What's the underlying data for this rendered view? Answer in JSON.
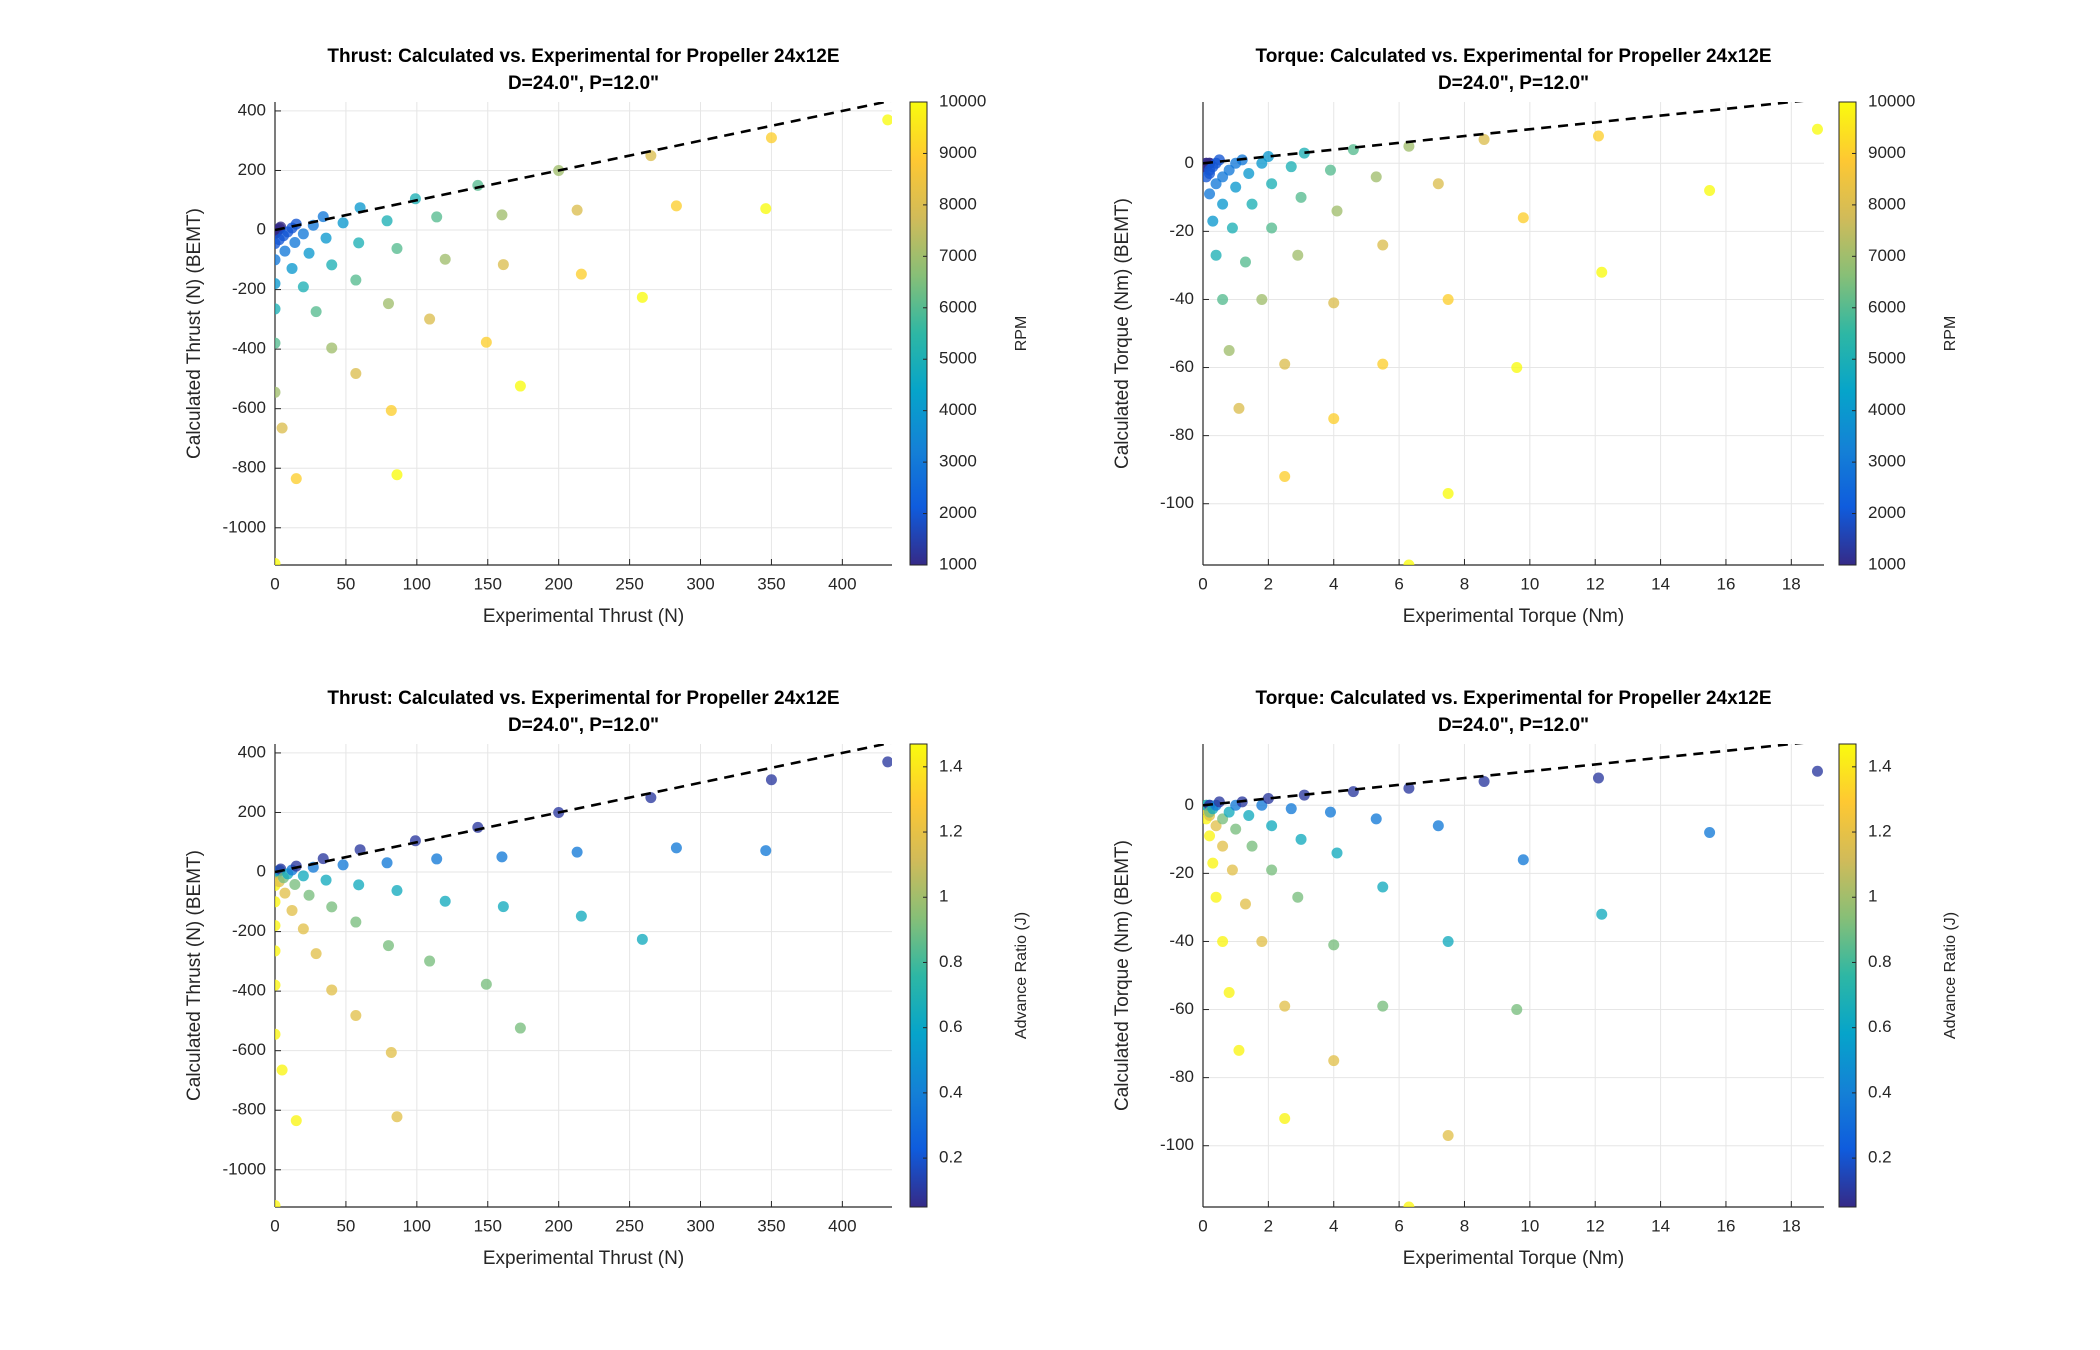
{
  "chart_data": [
    {
      "type": "scatter",
      "title": "Thrust: Calculated vs. Experimental for Propeller 24x12E",
      "subtitle": "D=24.0\", P=12.0\"",
      "xlabel": "Experimental Thrust (N)",
      "ylabel": "Calculated Thrust (N) (BEMT)",
      "colorbar_label": "RPM",
      "xlim": [
        0,
        435
      ],
      "ylim": [
        -1125,
        430
      ],
      "xticks": [
        0,
        50,
        100,
        150,
        200,
        250,
        300,
        350,
        400
      ],
      "yticks": [
        -1000,
        -800,
        -600,
        -400,
        -200,
        0,
        200,
        400
      ],
      "clim": [
        1000,
        10000
      ],
      "cticks": [
        1000,
        2000,
        3000,
        4000,
        5000,
        6000,
        7000,
        8000,
        9000,
        10000
      ],
      "colormap": [
        "#352a87",
        "#0f5cdd",
        "#1481d6",
        "#06a4ca",
        "#2eb7a4",
        "#87bf77",
        "#d1bb59",
        "#fec832",
        "#f9fb0e"
      ],
      "grid": true,
      "identity_line": true,
      "x": [
        0,
        0.8,
        1.6,
        2.4,
        3.2,
        4,
        0,
        3,
        6,
        9,
        12,
        15,
        0,
        7,
        14,
        20,
        27,
        34,
        0,
        12,
        24,
        36,
        48,
        60,
        0,
        20,
        40,
        59,
        79,
        99,
        0,
        29,
        57,
        86,
        114,
        143,
        0,
        40,
        80,
        120,
        160,
        200,
        5,
        57,
        109,
        161,
        213,
        265,
        15,
        82,
        149,
        216,
        283,
        350,
        0,
        86,
        173,
        259,
        346,
        432
      ],
      "y": [
        -12,
        -8,
        -3,
        1,
        6,
        10,
        -45,
        -32,
        -19,
        -6,
        7,
        20,
        -100,
        -71,
        -42,
        -13,
        16,
        45,
        -180,
        -129,
        -78,
        -27,
        24,
        75,
        -265,
        -191,
        -117,
        -43,
        31,
        105,
        -380,
        -274,
        -168,
        -62,
        44,
        150,
        -545,
        -396,
        -247,
        -98,
        51,
        200,
        -665,
        -482,
        -299,
        -116,
        67,
        250,
        -835,
        -606,
        -377,
        -148,
        81,
        310,
        -1120,
        -822,
        -524,
        -226,
        72,
        370
      ],
      "c": [
        1000,
        1000,
        1000,
        1000,
        1000,
        1000,
        2000,
        2000,
        2000,
        2000,
        2000,
        2000,
        3000,
        3000,
        3000,
        3000,
        3000,
        3000,
        4000,
        4000,
        4000,
        4000,
        4000,
        4000,
        5000,
        5000,
        5000,
        5000,
        5000,
        5000,
        6000,
        6000,
        6000,
        6000,
        6000,
        6000,
        7000,
        7000,
        7000,
        7000,
        7000,
        7000,
        8000,
        8000,
        8000,
        8000,
        8000,
        8000,
        9000,
        9000,
        9000,
        9000,
        9000,
        9000,
        10000,
        10000,
        10000,
        10000,
        10000,
        10000
      ]
    },
    {
      "type": "scatter",
      "title": "Torque: Calculated vs. Experimental for Propeller 24x12E",
      "subtitle": "D=24.0\", P=12.0\"",
      "xlabel": "Experimental Torque (Nm)",
      "ylabel": "Calculated Torque (Nm) (BEMT)",
      "colorbar_label": "RPM",
      "xlim": [
        0,
        19
      ],
      "ylim": [
        -118,
        18
      ],
      "xticks": [
        0,
        2,
        4,
        6,
        8,
        10,
        12,
        14,
        16,
        18
      ],
      "yticks": [
        -100,
        -80,
        -60,
        -40,
        -20,
        0
      ],
      "clim": [
        1000,
        10000
      ],
      "cticks": [
        1000,
        2000,
        3000,
        4000,
        5000,
        6000,
        7000,
        8000,
        9000,
        10000
      ],
      "colormap": [
        "#352a87",
        "#0f5cdd",
        "#1481d6",
        "#06a4ca",
        "#2eb7a4",
        "#87bf77",
        "#d1bb59",
        "#fec832",
        "#f9fb0e"
      ],
      "grid": true,
      "identity_line": true,
      "x": [
        0,
        0.1,
        0.1,
        0.1,
        0.2,
        0.2,
        0.1,
        0.2,
        0.2,
        0.3,
        0.4,
        0.5,
        0.2,
        0.4,
        0.6,
        0.8,
        1.0,
        1.2,
        0.3,
        0.6,
        1.0,
        1.4,
        1.8,
        2.0,
        0.4,
        0.9,
        1.5,
        2.1,
        2.7,
        3.1,
        0.6,
        1.3,
        2.1,
        3.0,
        3.9,
        4.6,
        0.8,
        1.8,
        2.9,
        4.1,
        5.3,
        6.3,
        1.1,
        2.5,
        4.0,
        5.5,
        7.2,
        8.6,
        2.5,
        4.0,
        5.5,
        7.5,
        9.8,
        12.1,
        6.3,
        7.5,
        9.6,
        12.2,
        15.5,
        18.8
      ],
      "y": [
        -1,
        -1,
        0,
        0,
        0,
        0,
        -4,
        -3,
        -2,
        -1,
        0,
        1,
        -9,
        -6,
        -4,
        -2,
        0,
        1,
        -17,
        -12,
        -7,
        -3,
        0,
        2,
        -27,
        -19,
        -12,
        -6,
        -1,
        3,
        -40,
        -29,
        -19,
        -10,
        -2,
        4,
        -55,
        -40,
        -27,
        -14,
        -4,
        5,
        -72,
        -59,
        -41,
        -24,
        -6,
        7,
        -92,
        -75,
        -59,
        -40,
        -16,
        8,
        -118,
        -97,
        -60,
        -32,
        -8,
        10
      ],
      "c": [
        1000,
        1000,
        1000,
        1000,
        1000,
        1000,
        2000,
        2000,
        2000,
        2000,
        2000,
        2000,
        3000,
        3000,
        3000,
        3000,
        3000,
        3000,
        4000,
        4000,
        4000,
        4000,
        4000,
        4000,
        5000,
        5000,
        5000,
        5000,
        5000,
        5000,
        6000,
        6000,
        6000,
        6000,
        6000,
        6000,
        7000,
        7000,
        7000,
        7000,
        7000,
        7000,
        8000,
        8000,
        8000,
        8000,
        8000,
        8000,
        9000,
        9000,
        9000,
        9000,
        9000,
        9000,
        10000,
        10000,
        10000,
        10000,
        10000,
        10000
      ]
    },
    {
      "type": "scatter",
      "title": "Thrust: Calculated vs. Experimental for Propeller 24x12E",
      "subtitle": "D=24.0\", P=12.0\"",
      "xlabel": "Experimental Thrust (N)",
      "ylabel": "Calculated Thrust (N) (BEMT)",
      "colorbar_label": "Advance Ratio (J)",
      "xlim": [
        0,
        435
      ],
      "ylim": [
        -1125,
        430
      ],
      "xticks": [
        0,
        50,
        100,
        150,
        200,
        250,
        300,
        350,
        400
      ],
      "yticks": [
        -1000,
        -800,
        -600,
        -400,
        -200,
        0,
        200,
        400
      ],
      "clim": [
        0.05,
        1.47
      ],
      "cticks": [
        0.2,
        0.4,
        0.6,
        0.8,
        1,
        1.2,
        1.4
      ],
      "colormap": [
        "#352a87",
        "#0f5cdd",
        "#1481d6",
        "#06a4ca",
        "#2eb7a4",
        "#87bf77",
        "#d1bb59",
        "#fec832",
        "#f9fb0e"
      ],
      "grid": true,
      "identity_line": true,
      "x": [
        0,
        0.8,
        1.6,
        2.4,
        3.2,
        4,
        0,
        3,
        6,
        9,
        12,
        15,
        0,
        7,
        14,
        20,
        27,
        34,
        0,
        12,
        24,
        36,
        48,
        60,
        0,
        20,
        40,
        59,
        79,
        99,
        0,
        29,
        57,
        86,
        114,
        143,
        0,
        40,
        80,
        120,
        160,
        200,
        5,
        57,
        109,
        161,
        213,
        265,
        15,
        82,
        149,
        216,
        283,
        350,
        0,
        86,
        173,
        259,
        346,
        432
      ],
      "y": [
        -12,
        -8,
        -3,
        1,
        6,
        10,
        -45,
        -32,
        -19,
        -6,
        7,
        20,
        -100,
        -71,
        -42,
        -13,
        16,
        45,
        -180,
        -129,
        -78,
        -27,
        24,
        75,
        -265,
        -191,
        -117,
        -43,
        31,
        105,
        -380,
        -274,
        -168,
        -62,
        44,
        150,
        -545,
        -396,
        -247,
        -98,
        51,
        200,
        -665,
        -482,
        -299,
        -116,
        67,
        250,
        -835,
        -606,
        -377,
        -148,
        81,
        310,
        -1120,
        -822,
        -524,
        -226,
        72,
        370
      ],
      "c": [
        1.45,
        1.18,
        0.91,
        0.64,
        0.37,
        0.1,
        1.45,
        1.18,
        0.91,
        0.64,
        0.37,
        0.1,
        1.45,
        1.18,
        0.91,
        0.64,
        0.37,
        0.1,
        1.45,
        1.18,
        0.91,
        0.64,
        0.37,
        0.1,
        1.45,
        1.18,
        0.91,
        0.64,
        0.37,
        0.1,
        1.45,
        1.18,
        0.91,
        0.64,
        0.37,
        0.1,
        1.45,
        1.18,
        0.91,
        0.64,
        0.37,
        0.1,
        1.45,
        1.18,
        0.91,
        0.64,
        0.37,
        0.1,
        1.45,
        1.18,
        0.91,
        0.64,
        0.37,
        0.1,
        1.45,
        1.18,
        0.91,
        0.64,
        0.37,
        0.1
      ]
    },
    {
      "type": "scatter",
      "title": "Torque: Calculated vs. Experimental for Propeller 24x12E",
      "subtitle": "D=24.0\", P=12.0\"",
      "xlabel": "Experimental Torque (Nm)",
      "ylabel": "Calculated Torque (Nm) (BEMT)",
      "colorbar_label": "Advance Ratio (J)",
      "xlim": [
        0,
        19
      ],
      "ylim": [
        -118,
        18
      ],
      "xticks": [
        0,
        2,
        4,
        6,
        8,
        10,
        12,
        14,
        16,
        18
      ],
      "yticks": [
        -100,
        -80,
        -60,
        -40,
        -20,
        0
      ],
      "clim": [
        0.05,
        1.47
      ],
      "cticks": [
        0.2,
        0.4,
        0.6,
        0.8,
        1,
        1.2,
        1.4
      ],
      "colormap": [
        "#352a87",
        "#0f5cdd",
        "#1481d6",
        "#06a4ca",
        "#2eb7a4",
        "#87bf77",
        "#d1bb59",
        "#fec832",
        "#f9fb0e"
      ],
      "grid": true,
      "identity_line": true,
      "x": [
        0,
        0.1,
        0.1,
        0.1,
        0.2,
        0.2,
        0.1,
        0.2,
        0.2,
        0.3,
        0.4,
        0.5,
        0.2,
        0.4,
        0.6,
        0.8,
        1.0,
        1.2,
        0.3,
        0.6,
        1.0,
        1.4,
        1.8,
        2.0,
        0.4,
        0.9,
        1.5,
        2.1,
        2.7,
        3.1,
        0.6,
        1.3,
        2.1,
        3.0,
        3.9,
        4.6,
        0.8,
        1.8,
        2.9,
        4.1,
        5.3,
        6.3,
        1.1,
        2.5,
        4.0,
        5.5,
        7.2,
        8.6,
        2.5,
        4.0,
        5.5,
        7.5,
        9.8,
        12.1,
        6.3,
        7.5,
        9.6,
        12.2,
        15.5,
        18.8
      ],
      "y": [
        -1,
        -1,
        0,
        0,
        0,
        0,
        -4,
        -3,
        -2,
        -1,
        0,
        1,
        -9,
        -6,
        -4,
        -2,
        0,
        1,
        -17,
        -12,
        -7,
        -3,
        0,
        2,
        -27,
        -19,
        -12,
        -6,
        -1,
        3,
        -40,
        -29,
        -19,
        -10,
        -2,
        4,
        -55,
        -40,
        -27,
        -14,
        -4,
        5,
        -72,
        -59,
        -41,
        -24,
        -6,
        7,
        -92,
        -75,
        -59,
        -40,
        -16,
        8,
        -118,
        -97,
        -60,
        -32,
        -8,
        10
      ],
      "c": [
        1.45,
        1.18,
        0.91,
        0.64,
        0.37,
        0.1,
        1.45,
        1.18,
        0.91,
        0.64,
        0.37,
        0.1,
        1.45,
        1.18,
        0.91,
        0.64,
        0.37,
        0.1,
        1.45,
        1.18,
        0.91,
        0.64,
        0.37,
        0.1,
        1.45,
        1.18,
        0.91,
        0.64,
        0.37,
        0.1,
        1.45,
        1.18,
        0.91,
        0.64,
        0.37,
        0.1,
        1.45,
        1.18,
        0.91,
        0.64,
        0.37,
        0.1,
        1.45,
        1.18,
        0.91,
        0.64,
        0.37,
        0.1,
        1.45,
        1.18,
        0.91,
        0.64,
        0.37,
        0.1,
        1.45,
        1.18,
        0.91,
        0.64,
        0.37,
        0.1
      ]
    }
  ]
}
